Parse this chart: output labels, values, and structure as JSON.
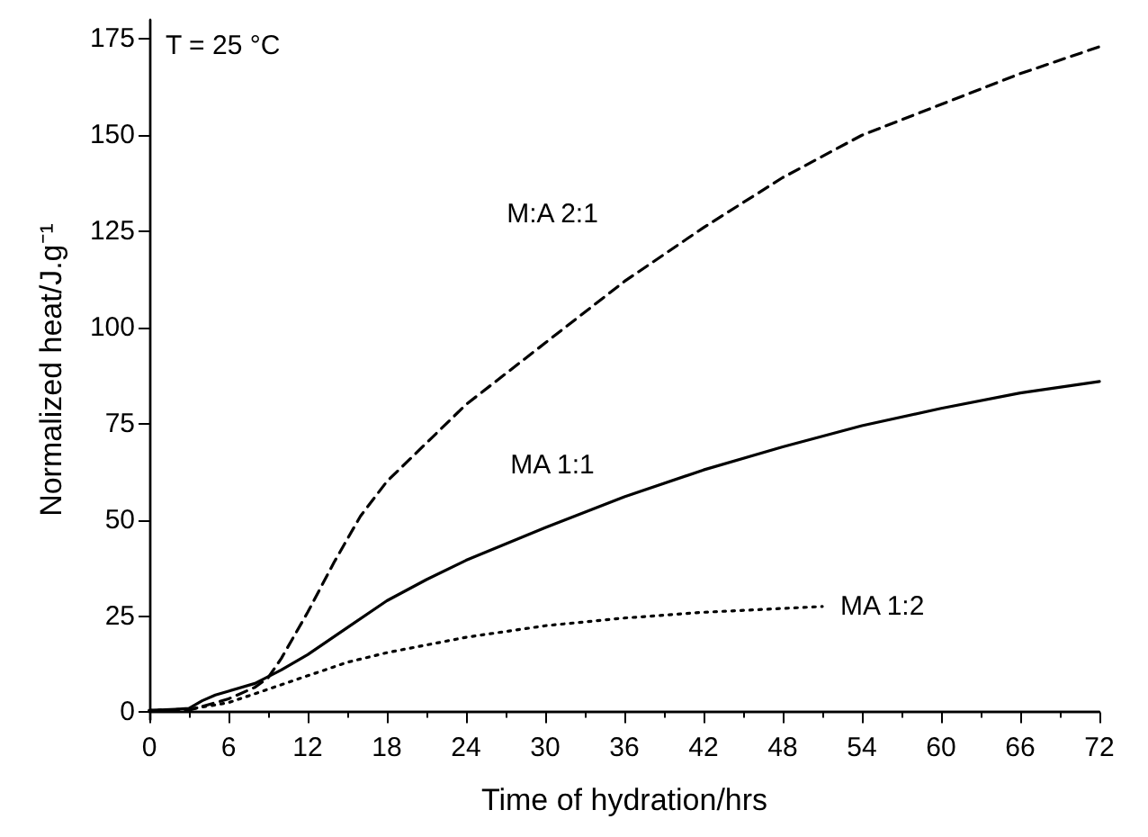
{
  "chart_data": {
    "type": "line",
    "xlabel": "Time of hydration/hrs",
    "ylabel": "Normalized heat/J.g⁻¹",
    "annotations": [
      "T = 25 °C"
    ],
    "xlim": [
      0,
      72
    ],
    "xticks": [
      0,
      6,
      12,
      18,
      24,
      30,
      36,
      42,
      48,
      54,
      60,
      66,
      72
    ],
    "ylim": [
      -2,
      180
    ],
    "yticks": [
      0,
      25,
      50,
      75,
      100,
      125,
      150,
      175
    ],
    "grid": false,
    "legend": false,
    "marker": "none",
    "series": [
      {
        "name": "M:A 2:1",
        "color": "#000000",
        "line_style": "dashed",
        "x": [
          0,
          3,
          4,
          6,
          8,
          9,
          10,
          12,
          14,
          16,
          18,
          21,
          24,
          30,
          36,
          42,
          48,
          54,
          60,
          66,
          72
        ],
        "values": [
          0.5,
          0.5,
          1.5,
          3.5,
          6.5,
          9,
          14,
          26,
          39,
          51,
          60,
          70,
          80,
          96,
          112,
          126,
          139,
          150,
          158,
          166,
          173
        ]
      },
      {
        "name": "MA 1:1",
        "color": "#000000",
        "line_style": "solid",
        "x": [
          0,
          2,
          3,
          4,
          5,
          6,
          8,
          10,
          12,
          15,
          18,
          21,
          24,
          30,
          36,
          42,
          48,
          54,
          60,
          66,
          72
        ],
        "values": [
          0.5,
          0.8,
          1,
          3,
          4.5,
          5.5,
          7.5,
          11,
          15,
          22,
          29,
          34.5,
          39.5,
          48,
          56,
          63,
          69,
          74.5,
          79,
          83,
          86
        ]
      },
      {
        "name": "MA 1:2",
        "color": "#000000",
        "line_style": "dotted",
        "x": [
          0,
          3,
          6,
          9,
          12,
          15,
          18,
          24,
          30,
          36,
          42,
          48,
          51
        ],
        "values": [
          0.5,
          0.8,
          2.5,
          6,
          9.5,
          13,
          15.5,
          19.5,
          22.5,
          24.5,
          26,
          27,
          27.5
        ]
      }
    ]
  }
}
